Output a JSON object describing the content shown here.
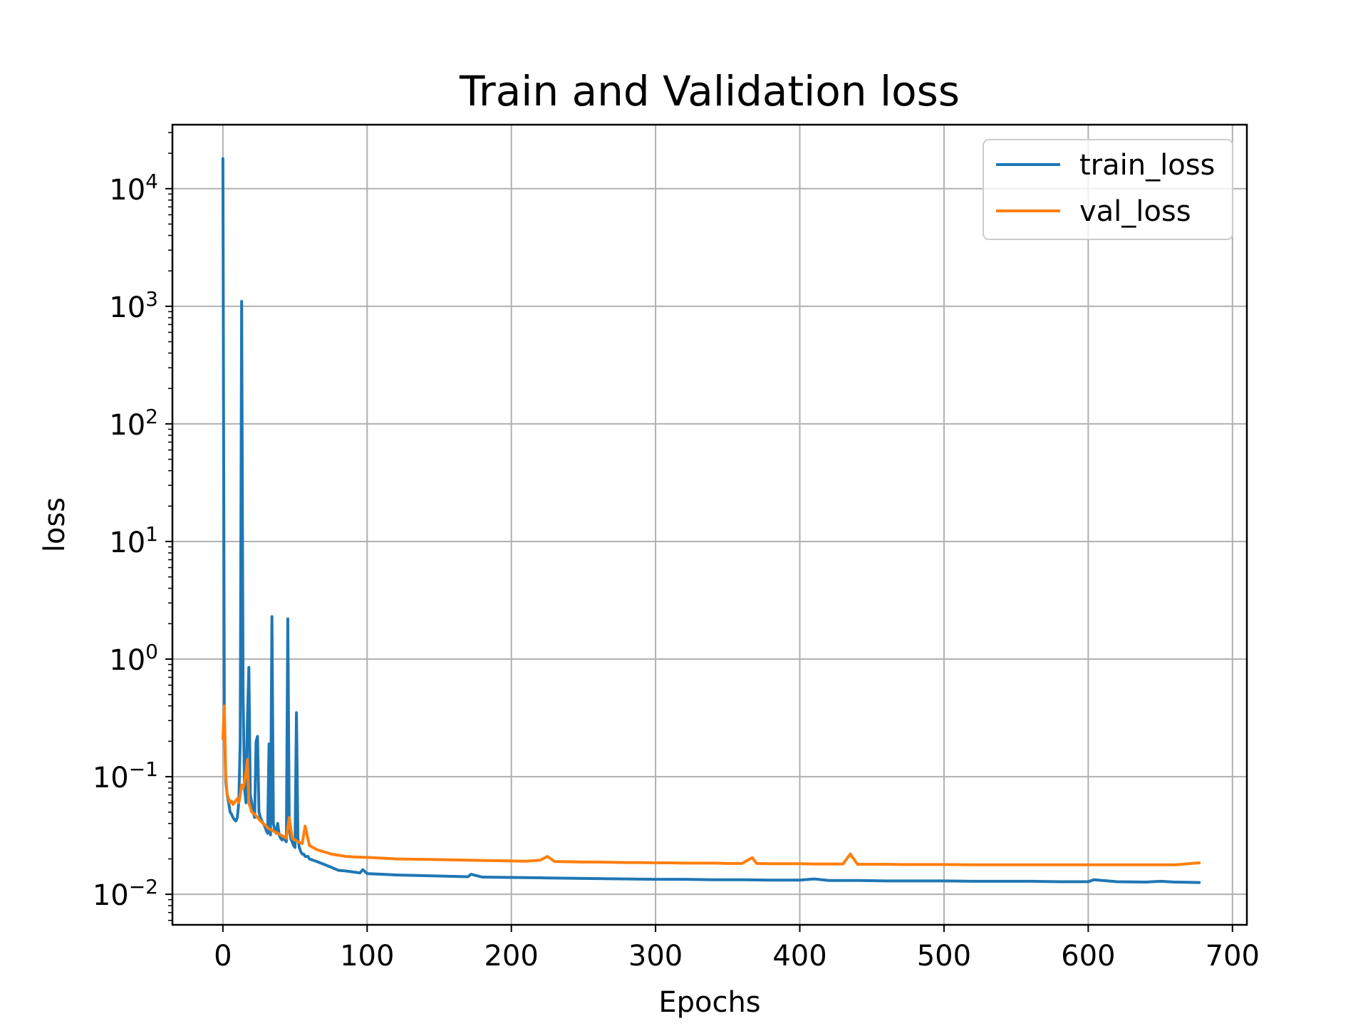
{
  "chart_data": {
    "type": "line",
    "title": "Train and Validation loss",
    "xlabel": "Epochs",
    "ylabel": "loss",
    "xlim": [
      -35,
      710
    ],
    "ylim": [
      0.0055,
      35000
    ],
    "yscale": "log",
    "grid": true,
    "legend_position": "top-right",
    "x_ticks": [
      {
        "value": 0,
        "label": "0"
      },
      {
        "value": 100,
        "label": "100"
      },
      {
        "value": 200,
        "label": "200"
      },
      {
        "value": 300,
        "label": "300"
      },
      {
        "value": 400,
        "label": "400"
      },
      {
        "value": 500,
        "label": "500"
      },
      {
        "value": 600,
        "label": "600"
      },
      {
        "value": 700,
        "label": "700"
      }
    ],
    "y_ticks": [
      {
        "value": 0.01,
        "base": "10",
        "exp": "−2"
      },
      {
        "value": 0.1,
        "base": "10",
        "exp": "−1"
      },
      {
        "value": 1,
        "base": "10",
        "exp": "0"
      },
      {
        "value": 10,
        "base": "10",
        "exp": "1"
      },
      {
        "value": 100,
        "base": "10",
        "exp": "2"
      },
      {
        "value": 1000,
        "base": "10",
        "exp": "3"
      },
      {
        "value": 10000,
        "base": "10",
        "exp": "4"
      }
    ],
    "series": [
      {
        "name": "train_loss",
        "color": "#1f77b4",
        "points": [
          [
            0,
            18000
          ],
          [
            1,
            0.3
          ],
          [
            2,
            0.09
          ],
          [
            3,
            0.07
          ],
          [
            4,
            0.06
          ],
          [
            5,
            0.05
          ],
          [
            6,
            0.048
          ],
          [
            7,
            0.045
          ],
          [
            8,
            0.043
          ],
          [
            9,
            0.042
          ],
          [
            10,
            0.045
          ],
          [
            11,
            0.06
          ],
          [
            12,
            0.2
          ],
          [
            13,
            1100
          ],
          [
            14,
            0.5
          ],
          [
            15,
            0.08
          ],
          [
            16,
            0.06
          ],
          [
            17,
            0.3
          ],
          [
            18,
            0.85
          ],
          [
            19,
            0.07
          ],
          [
            20,
            0.06
          ],
          [
            21,
            0.05
          ],
          [
            22,
            0.045
          ],
          [
            23,
            0.2
          ],
          [
            24,
            0.22
          ],
          [
            25,
            0.05
          ],
          [
            26,
            0.045
          ],
          [
            27,
            0.042
          ],
          [
            28,
            0.04
          ],
          [
            29,
            0.038
          ],
          [
            30,
            0.035
          ],
          [
            31,
            0.033
          ],
          [
            32,
            0.19
          ],
          [
            33,
            0.032
          ],
          [
            34,
            2.3
          ],
          [
            35,
            0.04
          ],
          [
            36,
            0.035
          ],
          [
            37,
            0.033
          ],
          [
            38,
            0.04
          ],
          [
            39,
            0.032
          ],
          [
            40,
            0.03
          ],
          [
            41,
            0.029
          ],
          [
            42,
            0.031
          ],
          [
            43,
            0.029
          ],
          [
            44,
            0.028
          ],
          [
            45,
            2.2
          ],
          [
            46,
            0.04
          ],
          [
            47,
            0.03
          ],
          [
            48,
            0.028
          ],
          [
            49,
            0.026
          ],
          [
            50,
            0.025
          ],
          [
            51,
            0.35
          ],
          [
            52,
            0.03
          ],
          [
            53,
            0.025
          ],
          [
            54,
            0.023
          ],
          [
            55,
            0.022
          ],
          [
            56,
            0.022
          ],
          [
            57,
            0.021
          ],
          [
            58,
            0.021
          ],
          [
            59,
            0.021
          ],
          [
            60,
            0.02
          ],
          [
            65,
            0.019
          ],
          [
            70,
            0.018
          ],
          [
            75,
            0.017
          ],
          [
            80,
            0.016
          ],
          [
            85,
            0.0158
          ],
          [
            90,
            0.0155
          ],
          [
            95,
            0.0152
          ],
          [
            97,
            0.0162
          ],
          [
            100,
            0.015
          ],
          [
            110,
            0.0148
          ],
          [
            120,
            0.0146
          ],
          [
            130,
            0.0145
          ],
          [
            140,
            0.0144
          ],
          [
            150,
            0.0143
          ],
          [
            160,
            0.0142
          ],
          [
            170,
            0.0141
          ],
          [
            172,
            0.0148
          ],
          [
            180,
            0.014
          ],
          [
            200,
            0.0139
          ],
          [
            220,
            0.0138
          ],
          [
            240,
            0.0137
          ],
          [
            260,
            0.0136
          ],
          [
            280,
            0.0135
          ],
          [
            300,
            0.0134
          ],
          [
            320,
            0.0134
          ],
          [
            340,
            0.0133
          ],
          [
            360,
            0.0133
          ],
          [
            380,
            0.0132
          ],
          [
            400,
            0.0132
          ],
          [
            410,
            0.0135
          ],
          [
            420,
            0.0131
          ],
          [
            440,
            0.0131
          ],
          [
            460,
            0.013
          ],
          [
            480,
            0.013
          ],
          [
            500,
            0.013
          ],
          [
            520,
            0.0129
          ],
          [
            540,
            0.0129
          ],
          [
            560,
            0.0129
          ],
          [
            580,
            0.0128
          ],
          [
            600,
            0.0128
          ],
          [
            604,
            0.0133
          ],
          [
            620,
            0.0128
          ],
          [
            640,
            0.0127
          ],
          [
            650,
            0.0129
          ],
          [
            660,
            0.0127
          ],
          [
            677,
            0.0126
          ]
        ]
      },
      {
        "name": "val_loss",
        "color": "#ff7f0e",
        "points": [
          [
            0,
            0.21
          ],
          [
            1,
            0.4
          ],
          [
            2,
            0.1
          ],
          [
            3,
            0.07
          ],
          [
            4,
            0.065
          ],
          [
            5,
            0.06
          ],
          [
            6,
            0.062
          ],
          [
            7,
            0.058
          ],
          [
            8,
            0.06
          ],
          [
            9,
            0.063
          ],
          [
            10,
            0.065
          ],
          [
            11,
            0.06
          ],
          [
            12,
            0.07
          ],
          [
            13,
            0.085
          ],
          [
            14,
            0.08
          ],
          [
            15,
            0.09
          ],
          [
            16,
            0.11
          ],
          [
            17,
            0.14
          ],
          [
            18,
            0.06
          ],
          [
            19,
            0.055
          ],
          [
            20,
            0.05
          ],
          [
            22,
            0.048
          ],
          [
            24,
            0.045
          ],
          [
            26,
            0.042
          ],
          [
            28,
            0.04
          ],
          [
            30,
            0.038
          ],
          [
            32,
            0.036
          ],
          [
            34,
            0.035
          ],
          [
            36,
            0.034
          ],
          [
            38,
            0.033
          ],
          [
            40,
            0.032
          ],
          [
            42,
            0.031
          ],
          [
            44,
            0.03
          ],
          [
            46,
            0.045
          ],
          [
            48,
            0.03
          ],
          [
            50,
            0.029
          ],
          [
            52,
            0.028
          ],
          [
            55,
            0.027
          ],
          [
            57,
            0.038
          ],
          [
            60,
            0.026
          ],
          [
            65,
            0.024
          ],
          [
            70,
            0.023
          ],
          [
            75,
            0.022
          ],
          [
            80,
            0.0215
          ],
          [
            85,
            0.021
          ],
          [
            90,
            0.0208
          ],
          [
            100,
            0.0206
          ],
          [
            110,
            0.0203
          ],
          [
            120,
            0.02
          ],
          [
            130,
            0.0199
          ],
          [
            140,
            0.0198
          ],
          [
            150,
            0.0197
          ],
          [
            160,
            0.0196
          ],
          [
            170,
            0.0195
          ],
          [
            180,
            0.0194
          ],
          [
            190,
            0.0193
          ],
          [
            200,
            0.0192
          ],
          [
            210,
            0.0191
          ],
          [
            220,
            0.0195
          ],
          [
            225,
            0.021
          ],
          [
            230,
            0.019
          ],
          [
            240,
            0.0189
          ],
          [
            250,
            0.0188
          ],
          [
            260,
            0.0188
          ],
          [
            270,
            0.0187
          ],
          [
            280,
            0.0186
          ],
          [
            290,
            0.0186
          ],
          [
            300,
            0.0185
          ],
          [
            310,
            0.0185
          ],
          [
            320,
            0.0184
          ],
          [
            330,
            0.0184
          ],
          [
            340,
            0.0184
          ],
          [
            350,
            0.0183
          ],
          [
            360,
            0.0183
          ],
          [
            367,
            0.0205
          ],
          [
            370,
            0.0183
          ],
          [
            380,
            0.0182
          ],
          [
            390,
            0.0182
          ],
          [
            400,
            0.0182
          ],
          [
            410,
            0.0181
          ],
          [
            420,
            0.0181
          ],
          [
            430,
            0.0181
          ],
          [
            435,
            0.022
          ],
          [
            440,
            0.018
          ],
          [
            450,
            0.018
          ],
          [
            460,
            0.018
          ],
          [
            470,
            0.0179
          ],
          [
            480,
            0.0179
          ],
          [
            490,
            0.0179
          ],
          [
            500,
            0.0179
          ],
          [
            520,
            0.0178
          ],
          [
            540,
            0.0178
          ],
          [
            560,
            0.0178
          ],
          [
            580,
            0.0178
          ],
          [
            600,
            0.0178
          ],
          [
            620,
            0.0178
          ],
          [
            640,
            0.0178
          ],
          [
            660,
            0.0178
          ],
          [
            677,
            0.0185
          ]
        ]
      }
    ]
  }
}
